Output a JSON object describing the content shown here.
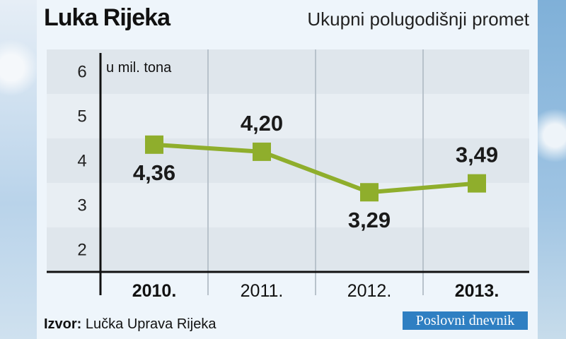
{
  "header": {
    "title": "Luka Rijeka",
    "subtitle": "Ukupni polugodišnji promet"
  },
  "source": {
    "label": "Izvor:",
    "text": "Lučka Uprava Rijeka"
  },
  "brand": {
    "part1": "Poslovni",
    "part2": "dnevnik"
  },
  "colors": {
    "line": "#8fae2c",
    "band_light": "#e8eef3",
    "band_dark": "#dfe6ec"
  },
  "chart_data": {
    "type": "line",
    "categories": [
      "2010.",
      "2011.",
      "2012.",
      "2013."
    ],
    "bold_categories": [
      "2010.",
      "2013."
    ],
    "values": [
      4.36,
      4.2,
      3.29,
      3.49
    ],
    "data_labels": [
      "4,36",
      "4,20",
      "3,29",
      "3,49"
    ],
    "title": "Luka Rijeka",
    "subtitle": "Ukupni polugodišnji promet",
    "ylabel": "u mil. tona",
    "xlabel": "",
    "ylim": [
      1.5,
      6.5
    ],
    "yticks": [
      2,
      3,
      4,
      5,
      6
    ],
    "grid": true
  }
}
